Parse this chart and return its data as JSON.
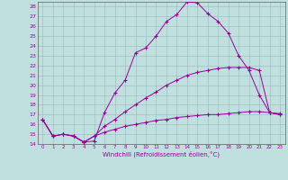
{
  "xlabel": "Windchill (Refroidissement éolien,°C)",
  "bg_color": "#c0e0e0",
  "line_color": "#990099",
  "xlim": [
    -0.5,
    23.5
  ],
  "ylim": [
    14,
    28.5
  ],
  "yticks": [
    14,
    15,
    16,
    17,
    18,
    19,
    20,
    21,
    22,
    23,
    24,
    25,
    26,
    27,
    28
  ],
  "xticks": [
    0,
    1,
    2,
    3,
    4,
    5,
    6,
    7,
    8,
    9,
    10,
    11,
    12,
    13,
    14,
    15,
    16,
    17,
    18,
    19,
    20,
    21,
    22,
    23
  ],
  "curve1_x": [
    0,
    1,
    2,
    3,
    4,
    5,
    6,
    7,
    8,
    9,
    10,
    11,
    12,
    13,
    14,
    15,
    16,
    17,
    18,
    19,
    20,
    21,
    22,
    23
  ],
  "curve1_y": [
    16.5,
    14.8,
    15.0,
    14.8,
    14.2,
    14.3,
    17.2,
    19.2,
    20.5,
    23.3,
    23.8,
    25.0,
    26.5,
    27.2,
    28.5,
    28.4,
    27.3,
    26.5,
    25.3,
    23.0,
    21.5,
    19.0,
    17.2,
    17.0
  ],
  "curve1_markers": [
    0,
    1,
    2,
    3,
    4,
    5,
    6,
    7,
    8,
    9,
    10,
    11,
    12,
    13,
    14,
    15,
    16,
    17,
    18,
    19,
    20,
    21,
    22,
    23
  ],
  "curve2_x": [
    0,
    1,
    2,
    3,
    4,
    5,
    6,
    7,
    8,
    9,
    10,
    11,
    12,
    13,
    14,
    15,
    16,
    17,
    18,
    19,
    20,
    21,
    22,
    23
  ],
  "curve2_y": [
    16.5,
    14.8,
    15.0,
    14.8,
    14.2,
    14.8,
    15.8,
    16.5,
    17.3,
    18.0,
    18.7,
    19.3,
    20.0,
    20.5,
    21.0,
    21.3,
    21.5,
    21.7,
    21.8,
    21.8,
    21.8,
    21.5,
    17.2,
    17.0
  ],
  "curve3_x": [
    0,
    1,
    2,
    3,
    4,
    5,
    6,
    7,
    8,
    9,
    10,
    11,
    12,
    13,
    14,
    15,
    16,
    17,
    18,
    19,
    20,
    21,
    22,
    23
  ],
  "curve3_y": [
    16.5,
    14.8,
    15.0,
    14.8,
    14.2,
    14.8,
    15.2,
    15.5,
    15.8,
    16.0,
    16.2,
    16.4,
    16.5,
    16.7,
    16.8,
    16.9,
    17.0,
    17.0,
    17.1,
    17.2,
    17.3,
    17.3,
    17.2,
    17.1
  ]
}
